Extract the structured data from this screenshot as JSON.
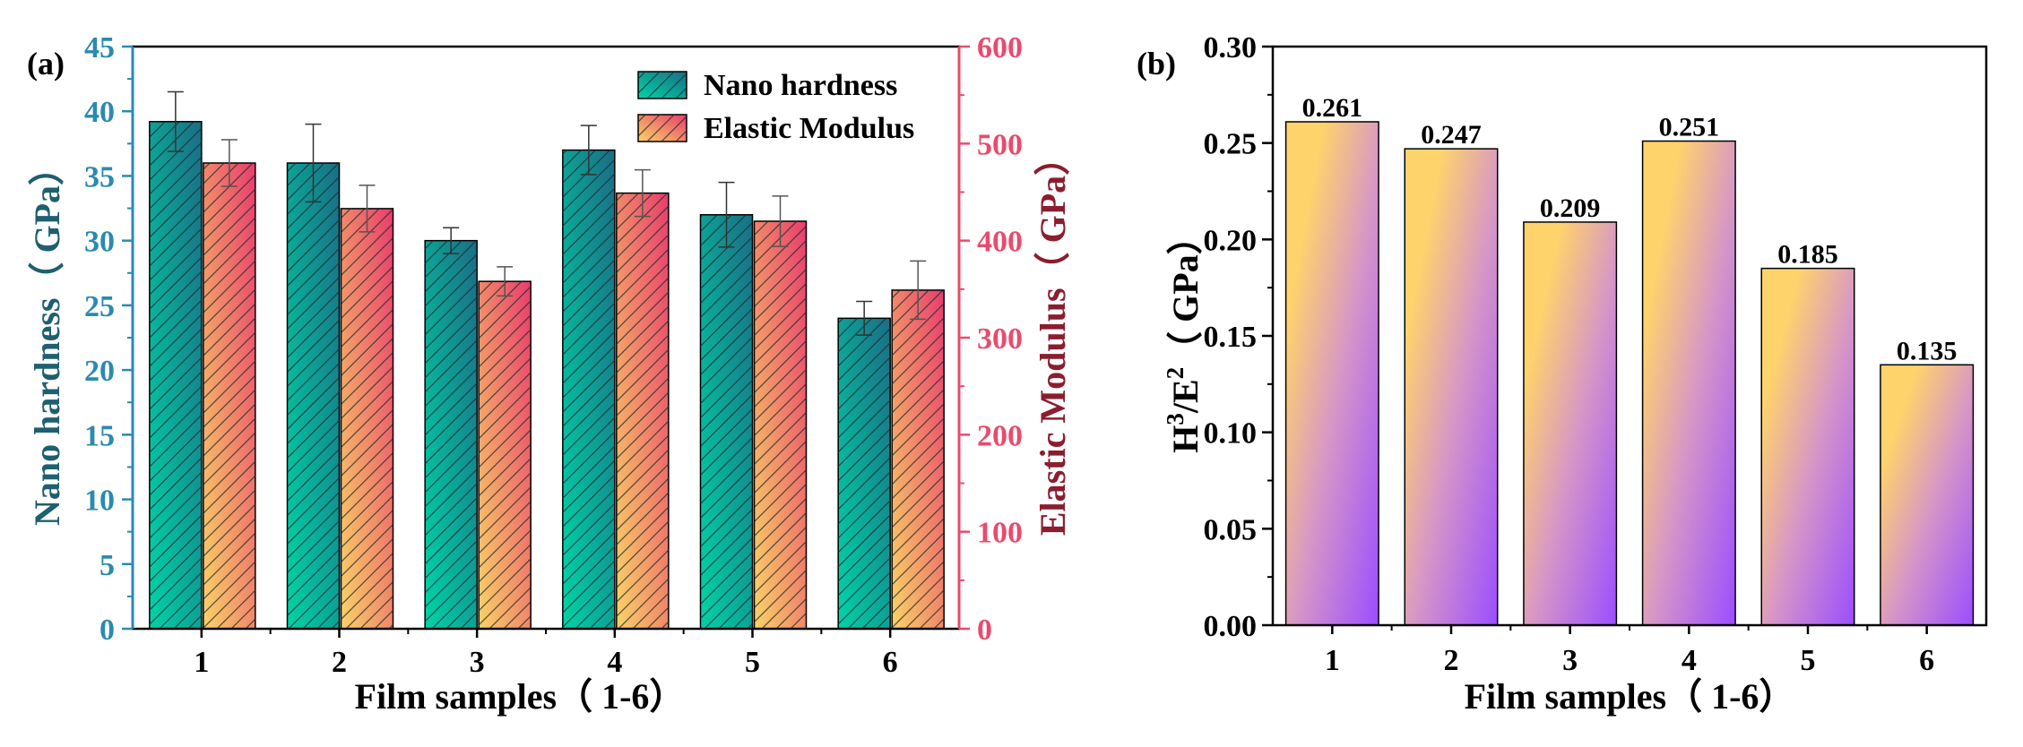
{
  "chart_data": [
    {
      "panel_label": "(a)",
      "type": "bar",
      "categories": [
        "1",
        "2",
        "3",
        "4",
        "5",
        "6"
      ],
      "series": [
        {
          "name": "Nano hardness",
          "axis": "left",
          "color_start": "#00d4a6",
          "color_end": "#1a6e85",
          "values": [
            39.2,
            36.0,
            30.0,
            37.0,
            32.0,
            24.0
          ],
          "errors": [
            2.3,
            3.0,
            1.0,
            1.9,
            2.5,
            1.3
          ]
        },
        {
          "name": "Elastic Modulus",
          "axis": "right",
          "color_start": "#fad366",
          "color_end": "#e83d6c",
          "values": [
            480,
            433,
            358,
            449,
            420,
            349
          ],
          "errors": [
            24,
            24,
            15,
            24,
            26,
            30
          ]
        }
      ],
      "xlabel": "Film samples（  1-6）",
      "ylabel_left": "Nano hardness（  GPa）",
      "ylabel_right": "Elastic Modulus（  GPa）",
      "ylim_left": [
        0,
        45
      ],
      "ylim_right": [
        0,
        600
      ],
      "yticks_left": [
        "0",
        "5",
        "10",
        "15",
        "20",
        "25",
        "30",
        "35",
        "40",
        "45"
      ],
      "yticks_right": [
        "0",
        "100",
        "200",
        "300",
        "400",
        "500",
        "600"
      ],
      "left_axis_color": "#2a8ab0",
      "right_axis_color": "#e84b6e",
      "left_label_color": "#1e5f70",
      "right_label_color": "#8a1e2e",
      "legend_position": "top-right",
      "grid": false
    },
    {
      "panel_label": "(b)",
      "type": "bar",
      "categories": [
        "1",
        "2",
        "3",
        "4",
        "5",
        "6"
      ],
      "values": [
        0.261,
        0.247,
        0.209,
        0.251,
        0.185,
        0.135
      ],
      "value_labels": [
        "0.261",
        "0.247",
        "0.209",
        "0.251",
        "0.185",
        "0.135"
      ],
      "xlabel": "Film samples（  1-6）",
      "ylabel_main": "H",
      "ylabel_sup1": "3",
      "ylabel_mid": "/E",
      "ylabel_sup2": "2",
      "ylabel_end": "（  GPa）",
      "ylim": [
        0,
        0.3
      ],
      "yticks": [
        "0.00",
        "0.05",
        "0.10",
        "0.15",
        "0.20",
        "0.25",
        "0.30"
      ],
      "color_start": "#ffd36b",
      "color_end": "#9b4dff",
      "grid": false
    }
  ]
}
